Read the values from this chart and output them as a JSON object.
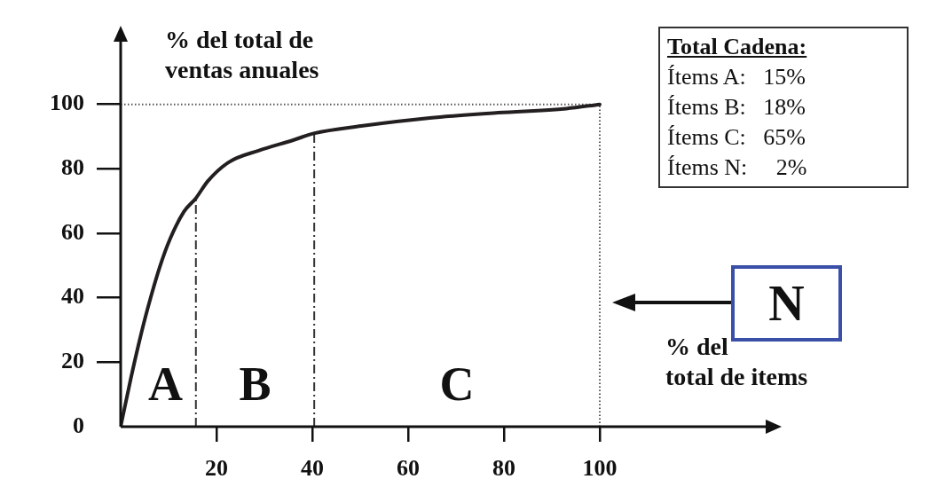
{
  "chart_data": {
    "type": "line",
    "xlabel": "% del\ntotal de items",
    "ylabel": "% del total de\nventas anuales",
    "xlim": [
      0,
      135
    ],
    "ylim": [
      0,
      120
    ],
    "xticks": [
      20,
      40,
      60,
      80,
      100
    ],
    "yticks": [
      0,
      20,
      40,
      60,
      80,
      100
    ],
    "grid": false,
    "legend": false,
    "marker": "none",
    "line_style": "solid",
    "series": [
      {
        "color": "#231f20",
        "x": [
          0,
          2.1,
          3.9,
          5.7,
          8.2,
          10.3,
          13.2,
          15.7,
          18.2,
          22.5,
          28.9,
          36,
          40.3,
          50.2,
          64.5,
          78.8,
          93,
          100
        ],
        "values": [
          0,
          14.8,
          26.5,
          37,
          49.7,
          58.2,
          66.7,
          70.9,
          76.2,
          82,
          85.7,
          88.9,
          91,
          93.3,
          95.8,
          97.4,
          98.7,
          100
        ]
      }
    ],
    "ref_lines": [
      {
        "axis": "x",
        "value": 15.7,
        "label": null,
        "color": "#333333",
        "line_style": "dashed"
      },
      {
        "axis": "x",
        "value": 40.4,
        "label": null,
        "color": "#333333",
        "line_style": "dashed"
      },
      {
        "axis": "x",
        "value": 100,
        "label": null,
        "color": "#555555",
        "line_style": "dotted"
      },
      {
        "axis": "y",
        "value": 100,
        "label": null,
        "color": "#555555",
        "line_style": "dotted"
      }
    ],
    "annotations": [
      "A",
      "B",
      "C",
      "N",
      "Total Cadena:",
      "Ítems A:   15%",
      "Ítems B:   18%",
      "Ítems C:   65%",
      "Ítems N:     2%"
    ]
  }
}
